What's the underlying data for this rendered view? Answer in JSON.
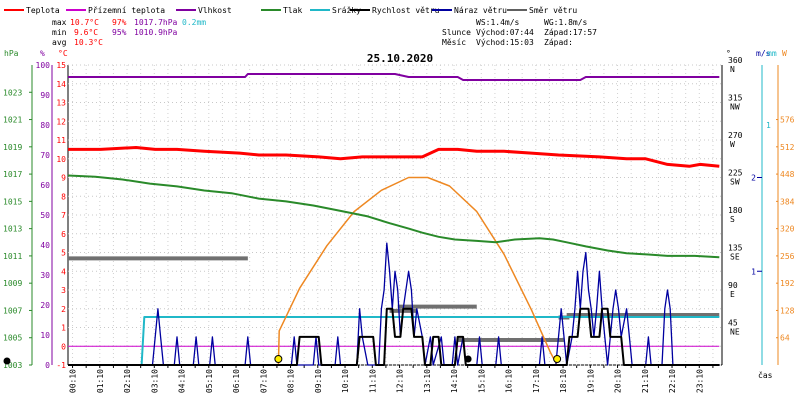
{
  "chart_data": {
    "type": "line",
    "title": "25.10.2020",
    "legend": [
      {
        "label": "Teplota",
        "color": "#ff0000"
      },
      {
        "label": "Přízemní teplota",
        "color": "#cc00cc"
      },
      {
        "label": "Vlhkost",
        "color": "#8000a0"
      },
      {
        "label": "Tlak",
        "color": "#2a8a2a"
      },
      {
        "label": "Srážky",
        "color": "#20b8c8"
      },
      {
        "label": "Rychlost větru",
        "color": "#000000"
      },
      {
        "label": "Náraz větru",
        "color": "#0000a0"
      },
      {
        "label": "Směr větru",
        "color": "#606060"
      }
    ],
    "stats": {
      "max_label": "max",
      "max_temp": "10.7°C",
      "max_hum": "97%",
      "max_press": "1017.7hPa",
      "max_rain": "0.2mm",
      "min_label": "min",
      "min_temp": "9.6°C",
      "min_hum": "95%",
      "min_press": "1010.9hPa",
      "avg_label": "avg",
      "avg_temp": "10.3°C",
      "ws": "WS:1.4m/s",
      "wg": "WG:1.8m/s",
      "sun_label": "Slunce",
      "sun_rise": "Východ:07:44",
      "sun_set": "Západ:17:57",
      "moon_label": "Měsíc",
      "moon_rise": "Východ:15:03",
      "moon_set": "Západ:"
    },
    "axis_units": {
      "hpa": "hPa",
      "pct": "%",
      "temp": "°C",
      "deg": "°",
      "ms": "m/s",
      "mm": "mm",
      "w": "W"
    },
    "xlabel": "čas",
    "x_ticks": [
      "00:10",
      "00:40",
      "01:10",
      "01:40",
      "02:10",
      "02:40",
      "03:10",
      "03:40",
      "04:10",
      "04:40",
      "05:10",
      "05:40",
      "06:10",
      "06:40",
      "07:10",
      "07:40",
      "08:10",
      "08:40",
      "09:10",
      "09:40",
      "10:10",
      "10:40",
      "11:10",
      "11:40",
      "12:10",
      "12:40",
      "13:10",
      "13:40",
      "14:10",
      "14:40",
      "15:10",
      "15:40",
      "16:10",
      "16:40",
      "17:10",
      "17:40",
      "18:10",
      "18:40",
      "19:10",
      "19:40",
      "20:10",
      "20:40",
      "21:10",
      "21:40",
      "22:10",
      "22:40",
      "23:10",
      "23:40"
    ],
    "x_tick_labels": [
      "00:10",
      "01:10",
      "02:10",
      "03:10",
      "04:10",
      "05:10",
      "06:10",
      "07:10",
      "08:10",
      "09:10",
      "10:10",
      "11:10",
      "12:10",
      "13:10",
      "14:10",
      "15:10",
      "16:10",
      "17:10",
      "18:10",
      "19:10",
      "20:10",
      "21:10",
      "22:10",
      "23:10"
    ],
    "temp_axis": {
      "min": -1,
      "max": 15,
      "ticks": [
        -1,
        0,
        1,
        2,
        3,
        4,
        5,
        6,
        7,
        8,
        9,
        10,
        11,
        12,
        13,
        14,
        15
      ]
    },
    "hum_axis": {
      "min": 0,
      "max": 100,
      "ticks": [
        0,
        10,
        20,
        30,
        40,
        50,
        60,
        70,
        80,
        90,
        100
      ]
    },
    "press_axis": {
      "min": 1003,
      "max": 1025,
      "ticks": [
        1003,
        1005,
        1007,
        1009,
        1011,
        1013,
        1015,
        1017,
        1019,
        1021,
        1023
      ]
    },
    "dir_axis": {
      "min": 0,
      "max": 360,
      "ticks": [
        {
          "v": 360,
          "l": "360",
          "c": "N"
        },
        {
          "v": 315,
          "l": "315",
          "c": "NW"
        },
        {
          "v": 270,
          "l": "270",
          "c": "W"
        },
        {
          "v": 225,
          "l": "225",
          "c": "SW"
        },
        {
          "v": 180,
          "l": "180",
          "c": "S"
        },
        {
          "v": 135,
          "l": "135",
          "c": "SE"
        },
        {
          "v": 90,
          "l": "90",
          "c": "E"
        },
        {
          "v": 45,
          "l": "45",
          "c": "NE"
        }
      ]
    },
    "wind_axis": {
      "min": 0,
      "max": 3.2,
      "ticks": [
        1,
        2
      ]
    },
    "rain_axis": {
      "min": 0,
      "max": 1.25,
      "ticks": [
        1
      ]
    },
    "solar_axis": {
      "min": 0,
      "max": 704,
      "ticks": [
        64,
        128,
        192,
        256,
        320,
        384,
        448,
        512,
        576
      ]
    },
    "series": [
      {
        "name": "Teplota",
        "axis": "temp",
        "color": "#ff0000",
        "width": 3,
        "points": [
          [
            0,
            10.5
          ],
          [
            1.2,
            10.5
          ],
          [
            2.5,
            10.6
          ],
          [
            3.2,
            10.5
          ],
          [
            4.0,
            10.5
          ],
          [
            5.0,
            10.4
          ],
          [
            6.3,
            10.3
          ],
          [
            7.0,
            10.2
          ],
          [
            8.0,
            10.2
          ],
          [
            9.2,
            10.1
          ],
          [
            10.0,
            10.0
          ],
          [
            10.8,
            10.1
          ],
          [
            11.8,
            10.1
          ],
          [
            13.0,
            10.1
          ],
          [
            13.6,
            10.5
          ],
          [
            14.3,
            10.5
          ],
          [
            15.0,
            10.4
          ],
          [
            16.0,
            10.4
          ],
          [
            17.0,
            10.3
          ],
          [
            18.0,
            10.2
          ],
          [
            19.5,
            10.1
          ],
          [
            20.5,
            10.0
          ],
          [
            21.2,
            10.0
          ],
          [
            22.0,
            9.7
          ],
          [
            22.8,
            9.6
          ],
          [
            23.2,
            9.7
          ],
          [
            23.9,
            9.6
          ]
        ]
      },
      {
        "name": "Přízemní teplota",
        "axis": "temp",
        "color": "#cc00cc",
        "width": 1,
        "points": [
          [
            0,
            0
          ],
          [
            23.9,
            0
          ]
        ]
      },
      {
        "name": "Vlhkost",
        "axis": "hum",
        "color": "#8000a0",
        "width": 2,
        "points": [
          [
            0,
            96
          ],
          [
            6.5,
            96
          ],
          [
            6.6,
            97
          ],
          [
            12.0,
            97
          ],
          [
            12.5,
            96
          ],
          [
            14.3,
            96
          ],
          [
            14.5,
            95
          ],
          [
            18.8,
            95
          ],
          [
            19.0,
            96
          ],
          [
            22.0,
            96
          ],
          [
            23.9,
            96
          ]
        ]
      },
      {
        "name": "Tlak",
        "axis": "press",
        "color": "#2a8a2a",
        "width": 2,
        "points": [
          [
            0,
            1016.9
          ],
          [
            1.0,
            1016.8
          ],
          [
            2.0,
            1016.6
          ],
          [
            3.0,
            1016.3
          ],
          [
            4.0,
            1016.1
          ],
          [
            5.0,
            1015.8
          ],
          [
            6.0,
            1015.6
          ],
          [
            7.0,
            1015.2
          ],
          [
            8.0,
            1015.0
          ],
          [
            9.0,
            1014.7
          ],
          [
            10.0,
            1014.3
          ],
          [
            11.0,
            1013.9
          ],
          [
            11.8,
            1013.4
          ],
          [
            12.5,
            1013.0
          ],
          [
            13.0,
            1012.7
          ],
          [
            13.6,
            1012.4
          ],
          [
            14.2,
            1012.2
          ],
          [
            15.0,
            1012.1
          ],
          [
            15.7,
            1012.0
          ],
          [
            16.4,
            1012.2
          ],
          [
            17.3,
            1012.3
          ],
          [
            17.8,
            1012.2
          ],
          [
            18.3,
            1012.0
          ],
          [
            19.0,
            1011.7
          ],
          [
            19.8,
            1011.4
          ],
          [
            20.5,
            1011.2
          ],
          [
            21.3,
            1011.1
          ],
          [
            22.0,
            1011.0
          ],
          [
            23.0,
            1011.0
          ],
          [
            23.9,
            1010.9
          ]
        ]
      },
      {
        "name": "Srážky",
        "axis": "rain",
        "color": "#20b8c8",
        "width": 2,
        "points": [
          [
            0,
            0
          ],
          [
            2.7,
            0
          ],
          [
            2.8,
            0.2
          ],
          [
            23.9,
            0.2
          ]
        ]
      },
      {
        "name": "Solar",
        "axis": "solar",
        "color": "#ee8822",
        "width": 1.5,
        "points": [
          [
            7.72,
            0
          ],
          [
            7.75,
            80
          ],
          [
            8.5,
            180
          ],
          [
            9.5,
            280
          ],
          [
            10.5,
            360
          ],
          [
            11.5,
            410
          ],
          [
            12.5,
            440
          ],
          [
            13.2,
            440
          ],
          [
            14.0,
            420
          ],
          [
            15.0,
            360
          ],
          [
            16.0,
            260
          ],
          [
            17.0,
            130
          ],
          [
            17.7,
            30
          ],
          [
            17.95,
            0
          ]
        ]
      }
    ],
    "gusts": {
      "color": "#0000a0",
      "points": [
        [
          0,
          0
        ],
        [
          3.1,
          0
        ],
        [
          3.2,
          0.3
        ],
        [
          3.3,
          0.6
        ],
        [
          3.4,
          0.3
        ],
        [
          3.5,
          0
        ],
        [
          3.9,
          0
        ],
        [
          4.0,
          0.3
        ],
        [
          4.1,
          0
        ],
        [
          4.6,
          0
        ],
        [
          4.7,
          0.3
        ],
        [
          4.8,
          0
        ],
        [
          5.2,
          0
        ],
        [
          5.3,
          0.3
        ],
        [
          5.4,
          0
        ],
        [
          6.5,
          0
        ],
        [
          6.6,
          0.3
        ],
        [
          6.7,
          0
        ],
        [
          8.2,
          0
        ],
        [
          8.3,
          0.3
        ],
        [
          8.4,
          0
        ],
        [
          9.0,
          0
        ],
        [
          9.1,
          0.3
        ],
        [
          9.2,
          0
        ],
        [
          9.8,
          0
        ],
        [
          9.9,
          0.3
        ],
        [
          10.0,
          0
        ],
        [
          10.6,
          0
        ],
        [
          10.7,
          0.6
        ],
        [
          10.8,
          0.3
        ],
        [
          11.0,
          0
        ],
        [
          11.4,
          0
        ],
        [
          11.5,
          0.6
        ],
        [
          11.6,
          0.8
        ],
        [
          11.7,
          1.3
        ],
        [
          11.8,
          1.0
        ],
        [
          11.9,
          0.6
        ],
        [
          12.0,
          1.0
        ],
        [
          12.1,
          0.8
        ],
        [
          12.2,
          0.3
        ],
        [
          12.3,
          0.6
        ],
        [
          12.5,
          1.0
        ],
        [
          12.6,
          0.8
        ],
        [
          12.7,
          0.3
        ],
        [
          12.8,
          0.6
        ],
        [
          13.0,
          0.3
        ],
        [
          13.1,
          0
        ],
        [
          13.3,
          0.3
        ],
        [
          13.4,
          0
        ],
        [
          13.7,
          0.3
        ],
        [
          13.8,
          0
        ],
        [
          14.1,
          0
        ],
        [
          14.2,
          0.3
        ],
        [
          14.3,
          0
        ],
        [
          14.5,
          0.3
        ],
        [
          14.6,
          0
        ],
        [
          15.0,
          0
        ],
        [
          15.1,
          0.3
        ],
        [
          15.2,
          0
        ],
        [
          15.7,
          0
        ],
        [
          15.8,
          0.3
        ],
        [
          15.9,
          0
        ],
        [
          17.3,
          0
        ],
        [
          17.4,
          0.3
        ],
        [
          17.5,
          0
        ],
        [
          17.9,
          0
        ],
        [
          18.0,
          0.3
        ],
        [
          18.1,
          0.6
        ],
        [
          18.2,
          0.3
        ],
        [
          18.3,
          0
        ],
        [
          18.5,
          0.3
        ],
        [
          18.6,
          0.6
        ],
        [
          18.7,
          1.0
        ],
        [
          18.8,
          0.6
        ],
        [
          18.9,
          1.0
        ],
        [
          19.0,
          1.2
        ],
        [
          19.1,
          0.8
        ],
        [
          19.2,
          0.6
        ],
        [
          19.3,
          0.3
        ],
        [
          19.4,
          0.6
        ],
        [
          19.5,
          1.0
        ],
        [
          19.6,
          0.6
        ],
        [
          19.7,
          0.3
        ],
        [
          19.8,
          0
        ],
        [
          19.9,
          0.3
        ],
        [
          20.0,
          0.6
        ],
        [
          20.1,
          0.8
        ],
        [
          20.2,
          0.6
        ],
        [
          20.3,
          0.3
        ],
        [
          20.5,
          0.6
        ],
        [
          20.6,
          0.3
        ],
        [
          20.7,
          0
        ],
        [
          21.2,
          0
        ],
        [
          21.3,
          0.3
        ],
        [
          21.4,
          0
        ],
        [
          21.8,
          0
        ],
        [
          21.9,
          0.6
        ],
        [
          22.0,
          0.8
        ],
        [
          22.1,
          0.6
        ],
        [
          22.2,
          0
        ],
        [
          23.9,
          0
        ]
      ]
    },
    "wind_speed": {
      "color": "#000000",
      "points": [
        [
          0,
          0
        ],
        [
          8.4,
          0
        ],
        [
          8.5,
          0.3
        ],
        [
          9.2,
          0.3
        ],
        [
          9.3,
          0
        ],
        [
          10.6,
          0
        ],
        [
          10.7,
          0.3
        ],
        [
          11.2,
          0.3
        ],
        [
          11.3,
          0
        ],
        [
          11.6,
          0
        ],
        [
          11.7,
          0.6
        ],
        [
          11.9,
          0.6
        ],
        [
          12.0,
          0.3
        ],
        [
          12.2,
          0.3
        ],
        [
          12.3,
          0.6
        ],
        [
          12.6,
          0.6
        ],
        [
          12.7,
          0.3
        ],
        [
          13.0,
          0.3
        ],
        [
          13.1,
          0
        ],
        [
          13.3,
          0
        ],
        [
          13.4,
          0.3
        ],
        [
          13.6,
          0.3
        ],
        [
          13.7,
          0
        ],
        [
          14.2,
          0
        ],
        [
          14.3,
          0.3
        ],
        [
          14.5,
          0.3
        ],
        [
          14.6,
          0
        ],
        [
          18.3,
          0
        ],
        [
          18.4,
          0.3
        ],
        [
          18.7,
          0.3
        ],
        [
          18.8,
          0.6
        ],
        [
          19.1,
          0.6
        ],
        [
          19.2,
          0.3
        ],
        [
          19.5,
          0.3
        ],
        [
          19.6,
          0.6
        ],
        [
          19.8,
          0.6
        ],
        [
          19.9,
          0.3
        ],
        [
          20.3,
          0.3
        ],
        [
          20.4,
          0
        ],
        [
          23.9,
          0
        ]
      ]
    },
    "wind_dir": {
      "color": "#707070",
      "segments": [
        [
          0.0,
          6.6,
          128
        ],
        [
          11.8,
          12.8,
          65
        ],
        [
          12.1,
          15.0,
          70
        ],
        [
          14.3,
          18.2,
          30
        ],
        [
          18.0,
          18.4,
          57
        ],
        [
          18.3,
          23.9,
          60
        ]
      ]
    },
    "markers": [
      {
        "x": 7.72,
        "label": "sunrise"
      },
      {
        "x": 17.95,
        "label": "sunset"
      },
      {
        "x": 15.05,
        "label": "moonrise"
      }
    ]
  }
}
